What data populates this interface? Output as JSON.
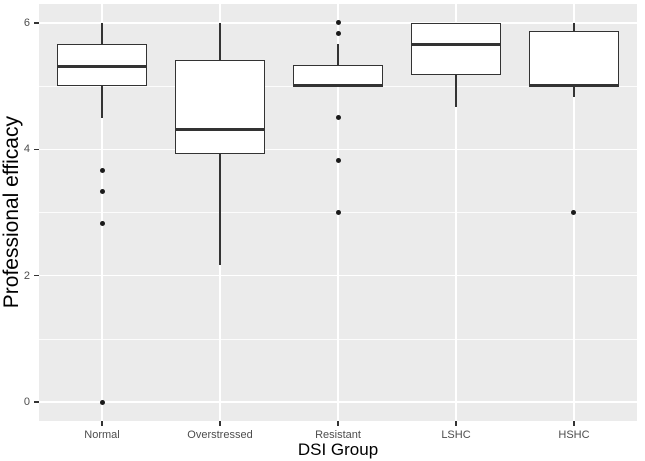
{
  "chart_data": {
    "type": "boxplot",
    "title": "",
    "xlabel": "DSI Group",
    "ylabel": "Professional efficacy",
    "categories": [
      "Normal",
      "Overstressed",
      "Resistant",
      "LSHC",
      "HSHC"
    ],
    "ylim": [
      -0.3,
      6.3
    ],
    "yticks": [
      0,
      2,
      4,
      6
    ],
    "yminor": [
      1,
      3,
      5
    ],
    "grid": "major and minor horizontal white lines on gray panel, vertical white line at each category center",
    "legend_position": "none",
    "series": [
      {
        "category": "Normal",
        "whisker_low": 4.5,
        "q1": 5.0,
        "median": 5.33,
        "q3": 5.67,
        "whisker_high": 6.0,
        "outliers": [
          3.67,
          3.33,
          2.83,
          0.0
        ]
      },
      {
        "category": "Overstressed",
        "whisker_low": 2.17,
        "q1": 3.92,
        "median": 4.33,
        "q3": 5.42,
        "whisker_high": 6.0,
        "outliers": []
      },
      {
        "category": "Resistant",
        "whisker_low": 5.0,
        "q1": 5.0,
        "median": 5.0,
        "q3": 5.33,
        "whisker_high": 5.67,
        "outliers": [
          6.0,
          5.83,
          4.5,
          3.83,
          3.0
        ]
      },
      {
        "category": "LSHC",
        "whisker_low": 4.67,
        "q1": 5.17,
        "median": 5.67,
        "q3": 6.0,
        "whisker_high": 6.0,
        "outliers": []
      },
      {
        "category": "HSHC",
        "whisker_low": 4.83,
        "q1": 5.0,
        "median": 5.0,
        "q3": 5.88,
        "whisker_high": 6.0,
        "outliers": [
          3.0
        ]
      }
    ],
    "style": {
      "panel_bg": "#EBEBEB",
      "grid_color": "#FFFFFF",
      "box_fill": "#FFFFFF",
      "box_stroke": "#333333",
      "outlier_color": "#1A1A1A",
      "tick_label_color": "#4D4D4D",
      "axis_title_color": "#000000"
    }
  }
}
